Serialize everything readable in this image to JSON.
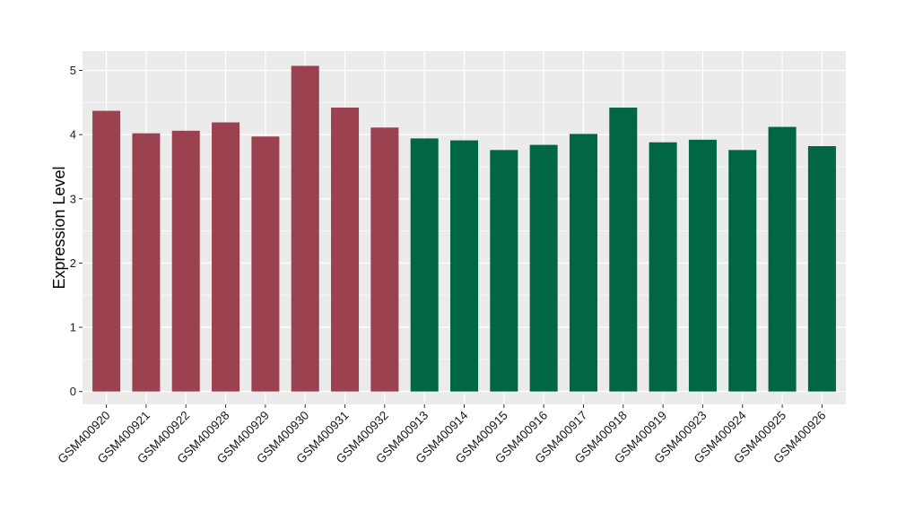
{
  "chart_data": {
    "type": "bar",
    "title": "",
    "xlabel": "",
    "ylabel": "Expression Level",
    "ylim": [
      -0.2,
      5.3
    ],
    "yticks": [
      0,
      1,
      2,
      3,
      4,
      5
    ],
    "grid": true,
    "legend": "none",
    "colors": {
      "group_a": "#9b4150",
      "group_b": "#006644",
      "panel_bg": "#ebebeb",
      "grid": "#ffffff"
    },
    "categories": [
      "GSM400920",
      "GSM400921",
      "GSM400922",
      "GSM400928",
      "GSM400929",
      "GSM400930",
      "GSM400931",
      "GSM400932",
      "GSM400913",
      "GSM400914",
      "GSM400915",
      "GSM400916",
      "GSM400917",
      "GSM400918",
      "GSM400919",
      "GSM400923",
      "GSM400924",
      "GSM400925",
      "GSM400926"
    ],
    "values": [
      4.37,
      4.02,
      4.06,
      4.19,
      3.97,
      5.07,
      4.42,
      4.11,
      3.94,
      3.91,
      3.76,
      3.84,
      4.01,
      4.42,
      3.88,
      3.92,
      3.76,
      4.12,
      3.82
    ],
    "groups": [
      "a",
      "a",
      "a",
      "a",
      "a",
      "a",
      "a",
      "a",
      "b",
      "b",
      "b",
      "b",
      "b",
      "b",
      "b",
      "b",
      "b",
      "b",
      "b"
    ]
  }
}
